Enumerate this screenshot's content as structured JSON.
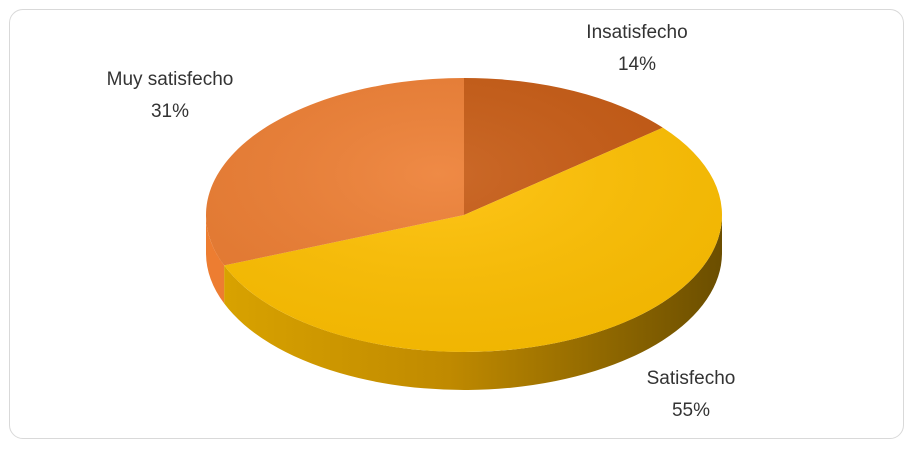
{
  "chart_data": {
    "type": "pie",
    "title": "",
    "style": "3d-pie",
    "slices": [
      {
        "label": "Insatisfecho",
        "value": 14,
        "display": "14%",
        "color": "#c65911"
      },
      {
        "label": "Satisfecho",
        "value": 55,
        "display": "55%",
        "color": "#ffc000"
      },
      {
        "label": "Muy satisfecho",
        "value": 31,
        "display": "31%",
        "color": "#ed7d31"
      }
    ],
    "legend": "none",
    "data_labels": "category-name-and-percent"
  }
}
